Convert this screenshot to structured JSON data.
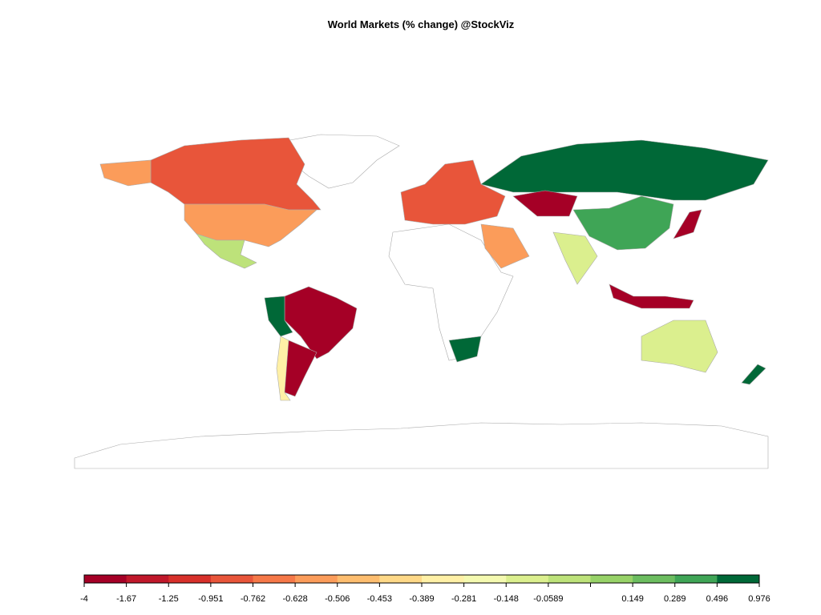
{
  "title": "World Markets (% change) @StockViz",
  "legend": {
    "colors": [
      "#a50026",
      "#c0182a",
      "#d7302a",
      "#e8553a",
      "#f57848",
      "#fb9c5a",
      "#fdbd6f",
      "#fed887",
      "#fff0a6",
      "#f4f9b0",
      "#dbef8e",
      "#bde27a",
      "#97d268",
      "#6cbd60",
      "#3fa556",
      "#006837"
    ],
    "ticks": [
      -4,
      -1.67,
      -1.25,
      -0.951,
      -0.762,
      -0.628,
      -0.506,
      -0.453,
      -0.389,
      -0.281,
      -0.148,
      -0.0589,
      null,
      0.149,
      0.289,
      0.496,
      0.976
    ]
  }
}
